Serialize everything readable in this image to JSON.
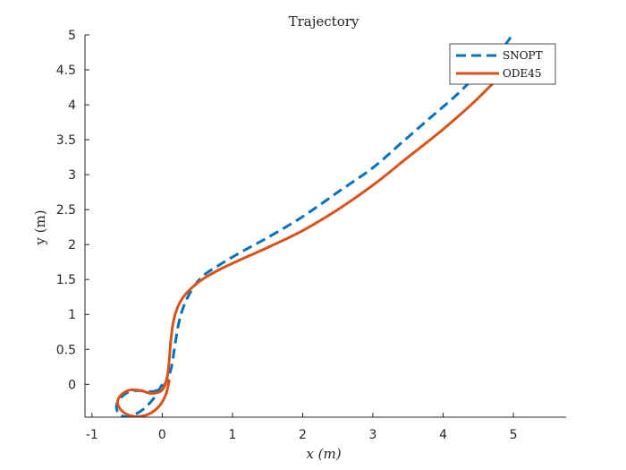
{
  "chart_data": {
    "type": "line",
    "title": "Trajectory",
    "xlabel": "x (m)",
    "ylabel": "y (m)",
    "xlim": [
      -1.1,
      5.75
    ],
    "ylim": [
      -0.47,
      5.0
    ],
    "xticks": [
      -1,
      0,
      1,
      2,
      3,
      4,
      5
    ],
    "yticks": [
      0,
      0.5,
      1,
      1.5,
      2,
      2.5,
      3,
      3.5,
      4,
      4.5,
      5
    ],
    "xtick_labels": [
      "-1",
      "0",
      "1",
      "2",
      "3",
      "4",
      "5"
    ],
    "ytick_labels": [
      "0",
      "0.5",
      "1",
      "1.5",
      "2",
      "2.5",
      "3",
      "3.5",
      "4",
      "4.5",
      "5"
    ],
    "grid": false,
    "legend_position": "top-right",
    "series": [
      {
        "name": "SNOPT",
        "style": "dashed",
        "color": "#0072bd",
        "x": [
          0.0,
          -0.12,
          -0.3,
          -0.5,
          -0.62,
          -0.65,
          -0.58,
          -0.45,
          -0.3,
          -0.12,
          0.02,
          0.12,
          0.18,
          0.23,
          0.3,
          0.42,
          0.58,
          0.8,
          1.1,
          1.5,
          2.0,
          2.5,
          3.0,
          3.4,
          3.8,
          4.2,
          4.55,
          4.8,
          4.97
        ],
        "y": [
          0.0,
          -0.2,
          -0.38,
          -0.46,
          -0.42,
          -0.3,
          -0.18,
          -0.1,
          -0.09,
          -0.1,
          -0.02,
          0.2,
          0.55,
          0.85,
          1.1,
          1.35,
          1.55,
          1.7,
          1.88,
          2.1,
          2.4,
          2.75,
          3.1,
          3.45,
          3.8,
          4.15,
          4.5,
          4.75,
          4.98
        ]
      },
      {
        "name": "ODE45",
        "style": "solid",
        "color": "#d95319",
        "x": [
          0.1,
          0.05,
          -0.05,
          -0.2,
          -0.38,
          -0.52,
          -0.62,
          -0.63,
          -0.56,
          -0.45,
          -0.3,
          -0.15,
          0.0,
          0.07,
          0.1,
          0.12,
          0.15,
          0.2,
          0.28,
          0.42,
          0.6,
          0.85,
          1.15,
          1.55,
          2.0,
          2.5,
          3.0,
          3.5,
          4.0,
          4.45,
          4.85
        ],
        "y": [
          0.05,
          -0.15,
          -0.32,
          -0.43,
          -0.46,
          -0.42,
          -0.32,
          -0.22,
          -0.13,
          -0.08,
          -0.09,
          -0.13,
          -0.08,
          0.1,
          0.35,
          0.6,
          0.85,
          1.05,
          1.22,
          1.38,
          1.52,
          1.66,
          1.8,
          1.98,
          2.2,
          2.5,
          2.85,
          3.25,
          3.65,
          4.05,
          4.45
        ]
      }
    ]
  }
}
